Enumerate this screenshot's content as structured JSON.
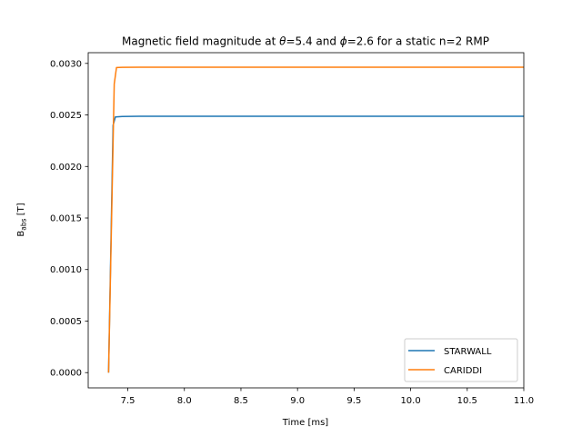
{
  "chart_data": {
    "type": "line",
    "title_parts": [
      "Magnetic field magnitude at ",
      "θ",
      "=5.4 and ",
      "ϕ",
      "=2.6 for a static n=2 RMP"
    ],
    "xlabel": "Time [ms]",
    "ylabel_main": "B",
    "ylabel_sub": "abs",
    "ylabel_unit": " [T]",
    "xlim": [
      7.15,
      11.0
    ],
    "ylim": [
      -0.000148,
      0.003104
    ],
    "xticks": [
      7.5,
      8.0,
      8.5,
      9.0,
      9.5,
      10.0,
      10.5,
      11.0
    ],
    "xtick_labels": [
      "7.5",
      "8.0",
      "8.5",
      "9.0",
      "9.5",
      "10.0",
      "10.5",
      "11.0"
    ],
    "yticks": [
      0.0,
      0.0005,
      0.001,
      0.0015,
      0.002,
      0.0025,
      0.003
    ],
    "ytick_labels": [
      "0.0000",
      "0.0005",
      "0.0010",
      "0.0015",
      "0.0020",
      "0.0025",
      "0.0030"
    ],
    "legend_position": "lower-right",
    "series": [
      {
        "name": "STARWALL",
        "color": "#1f77b4",
        "x": [
          7.33,
          7.37,
          7.39,
          7.45,
          7.6,
          8.0,
          9.0,
          10.0,
          11.0
        ],
        "y": [
          0.0,
          0.0024,
          0.00248,
          0.002485,
          0.002487,
          0.002487,
          0.002487,
          0.002487,
          0.002487
        ]
      },
      {
        "name": "CARIDDI",
        "color": "#ff7f0e",
        "x": [
          7.33,
          7.38,
          7.4,
          7.45,
          7.6,
          8.0,
          9.0,
          10.0,
          11.0
        ],
        "y": [
          0.0,
          0.0028,
          0.00296,
          0.002962,
          0.002963,
          0.002963,
          0.002963,
          0.002963,
          0.002963
        ]
      }
    ]
  }
}
